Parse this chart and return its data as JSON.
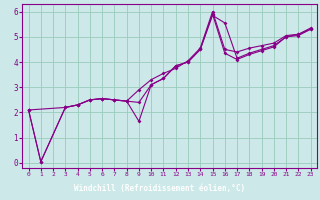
{
  "title": "",
  "xlabel": "Windchill (Refroidissement éolien,°C)",
  "ylabel": "",
  "bg_color": "#cce8e8",
  "grid_color": "#99ccbb",
  "line_color": "#880088",
  "bar_color": "#6600aa",
  "xlim": [
    -0.5,
    23.5
  ],
  "ylim": [
    -0.2,
    6.3
  ],
  "xticks": [
    0,
    1,
    2,
    3,
    4,
    5,
    6,
    7,
    8,
    9,
    10,
    11,
    12,
    13,
    14,
    15,
    16,
    17,
    18,
    19,
    20,
    21,
    22,
    23
  ],
  "yticks": [
    0,
    1,
    2,
    3,
    4,
    5,
    6
  ],
  "series1_x": [
    0,
    1,
    3,
    4,
    5,
    6,
    7,
    8,
    9,
    10,
    11,
    12,
    13,
    14,
    15,
    16,
    17,
    18,
    19,
    20,
    21,
    22,
    23
  ],
  "series1_y": [
    2.1,
    0.05,
    2.2,
    2.3,
    2.5,
    2.55,
    2.5,
    2.45,
    2.4,
    3.1,
    3.35,
    3.85,
    4.0,
    4.5,
    5.85,
    5.55,
    4.15,
    4.35,
    4.5,
    4.65,
    5.0,
    5.1,
    5.3
  ],
  "series2_x": [
    0,
    1,
    3,
    4,
    5,
    6,
    7,
    8,
    9,
    10,
    11,
    12,
    13,
    14,
    15,
    16,
    17,
    18,
    19,
    20,
    21,
    22,
    23
  ],
  "series2_y": [
    2.1,
    0.05,
    2.2,
    2.3,
    2.5,
    2.55,
    2.5,
    2.45,
    1.65,
    3.1,
    3.35,
    3.85,
    4.0,
    4.5,
    5.9,
    4.35,
    4.1,
    4.3,
    4.45,
    4.6,
    5.0,
    5.05,
    5.3
  ],
  "series3_x": [
    0,
    3,
    4,
    5,
    6,
    7,
    8,
    9,
    10,
    11,
    12,
    13,
    14,
    15,
    16,
    17,
    18,
    19,
    20,
    21,
    22,
    23
  ],
  "series3_y": [
    2.1,
    2.2,
    2.3,
    2.5,
    2.55,
    2.5,
    2.45,
    2.9,
    3.3,
    3.55,
    3.75,
    4.05,
    4.55,
    6.0,
    4.5,
    4.4,
    4.55,
    4.65,
    4.75,
    5.05,
    5.1,
    5.35
  ]
}
